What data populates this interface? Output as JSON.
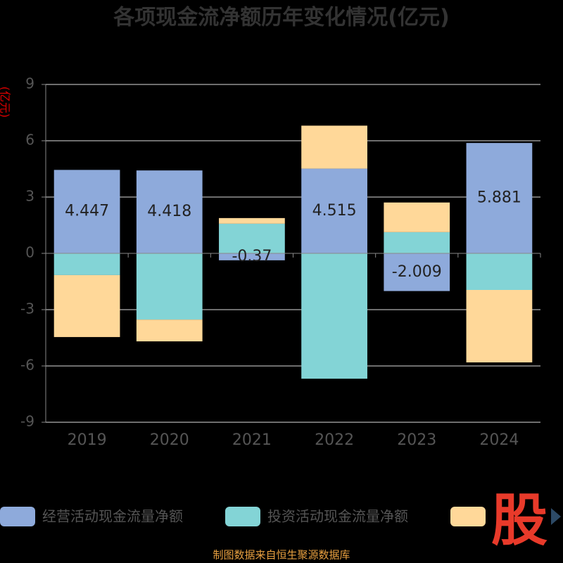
{
  "chart_data": {
    "type": "bar",
    "stacked": true,
    "title": "各项现金流净额历年变化情况(亿元)",
    "y_label": "(亿元)",
    "categories": [
      "2019",
      "2020",
      "2021",
      "2022",
      "2023",
      "2024"
    ],
    "series": [
      {
        "name": "经营活动现金流量净额",
        "color": "#8eaadb",
        "values": [
          4.447,
          4.418,
          -0.37,
          4.515,
          -2.009,
          5.881
        ],
        "labels": true
      },
      {
        "name": "投资活动现金流量净额",
        "color": "#83d4d6",
        "values": [
          -1.16,
          -3.53,
          1.58,
          -6.68,
          1.13,
          -1.95
        ]
      },
      {
        "color": "#ffd899",
        "values": [
          -3.3,
          -1.16,
          0.3,
          2.29,
          1.58,
          -3.86
        ]
      }
    ],
    "ylim": [
      -9,
      9
    ],
    "yticks": [
      -9,
      -6,
      -3,
      0,
      3,
      6,
      9
    ],
    "grid": true,
    "source": "制图数据来自恒生聚源数据库",
    "watermark": "股"
  }
}
